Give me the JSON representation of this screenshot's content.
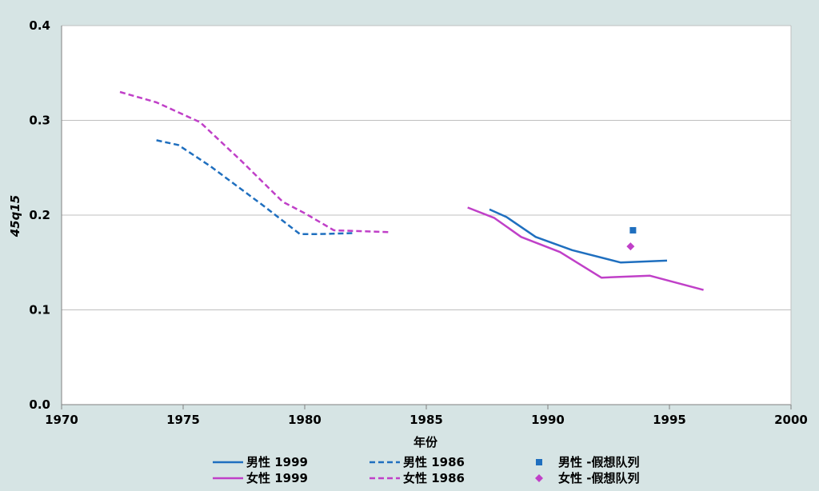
{
  "chart_data": {
    "type": "line",
    "xlabel": "年份",
    "ylabel": "45q15",
    "xlim": [
      1970,
      2000
    ],
    "ylim": [
      0.0,
      0.4
    ],
    "x_ticks": [
      "1970",
      "1975",
      "1980",
      "1985",
      "1990",
      "1995",
      "2000"
    ],
    "y_ticks": [
      "0.0",
      "0.1",
      "0.2",
      "0.3",
      "0.4"
    ],
    "grid": "horizontal",
    "legend_position": "bottom",
    "series": [
      {
        "name": "男性 1999",
        "kind": "line",
        "style": "solid",
        "color": "#1f6fbf",
        "x": [
          1987.6,
          1988.3,
          1989.5,
          1991.0,
          1993.0,
          1994.9
        ],
        "y": [
          0.206,
          0.198,
          0.177,
          0.163,
          0.15,
          0.152
        ]
      },
      {
        "name": "女性 1999",
        "kind": "line",
        "style": "solid",
        "color": "#c040c8",
        "x": [
          1986.7,
          1987.8,
          1988.9,
          1990.5,
          1992.2,
          1994.2,
          1996.4
        ],
        "y": [
          0.208,
          0.197,
          0.177,
          0.161,
          0.134,
          0.136,
          0.121
        ]
      },
      {
        "name": "男性 1986",
        "kind": "line",
        "style": "dashed",
        "color": "#1f6fbf",
        "x": [
          1973.9,
          1974.8,
          1976.1,
          1978.3,
          1979.8,
          1980.6,
          1982.0
        ],
        "y": [
          0.279,
          0.274,
          0.252,
          0.21,
          0.18,
          0.18,
          0.181
        ]
      },
      {
        "name": "女性 1986",
        "kind": "line",
        "style": "dashed",
        "color": "#c040c8",
        "x": [
          1972.4,
          1973.9,
          1975.7,
          1977.4,
          1979.1,
          1980.0,
          1981.2,
          1983.5
        ],
        "y": [
          0.33,
          0.319,
          0.298,
          0.257,
          0.214,
          0.202,
          0.184,
          0.182
        ]
      },
      {
        "name": "男性 -假想队列",
        "kind": "marker",
        "marker": "square",
        "color": "#1f6fbf",
        "x": [
          1993.5
        ],
        "y": [
          0.184
        ]
      },
      {
        "name": "女性 -假想队列",
        "kind": "marker",
        "marker": "diamond",
        "color": "#c040c8",
        "x": [
          1993.4
        ],
        "y": [
          0.167
        ]
      }
    ]
  }
}
